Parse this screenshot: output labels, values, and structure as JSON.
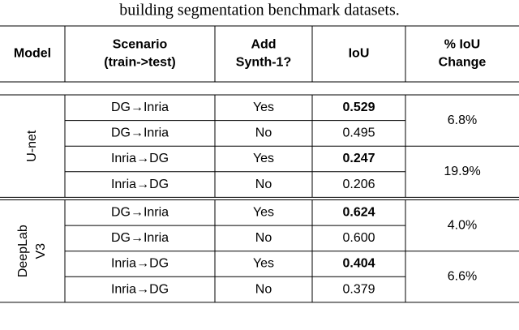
{
  "caption": "building segmentation benchmark datasets.",
  "table": {
    "headers": [
      [
        "Model"
      ],
      [
        "Scenario",
        "(train->test)"
      ],
      [
        "Add",
        "Synth-1?"
      ],
      [
        "IoU"
      ],
      [
        "% IoU",
        "Change"
      ]
    ],
    "groups": [
      {
        "model": [
          "U-net"
        ],
        "rows": [
          [
            "DG→Inria",
            "Yes",
            "0.529"
          ],
          [
            "DG→Inria",
            "No",
            "0.495"
          ],
          [
            "Inria→DG",
            "Yes",
            "0.247"
          ],
          [
            "Inria→DG",
            "No",
            "0.206"
          ]
        ],
        "changes": [
          "6.8%",
          "19.9%"
        ]
      },
      {
        "model": [
          "DeepLab",
          "V3"
        ],
        "rows": [
          [
            "DG→Inria",
            "Yes",
            "0.624"
          ],
          [
            "DG→Inria",
            "No",
            "0.600"
          ],
          [
            "Inria→DG",
            "Yes",
            "0.404"
          ],
          [
            "Inria→DG",
            "No",
            "0.379"
          ]
        ],
        "changes": [
          "4.0%",
          "6.6%"
        ]
      }
    ]
  }
}
